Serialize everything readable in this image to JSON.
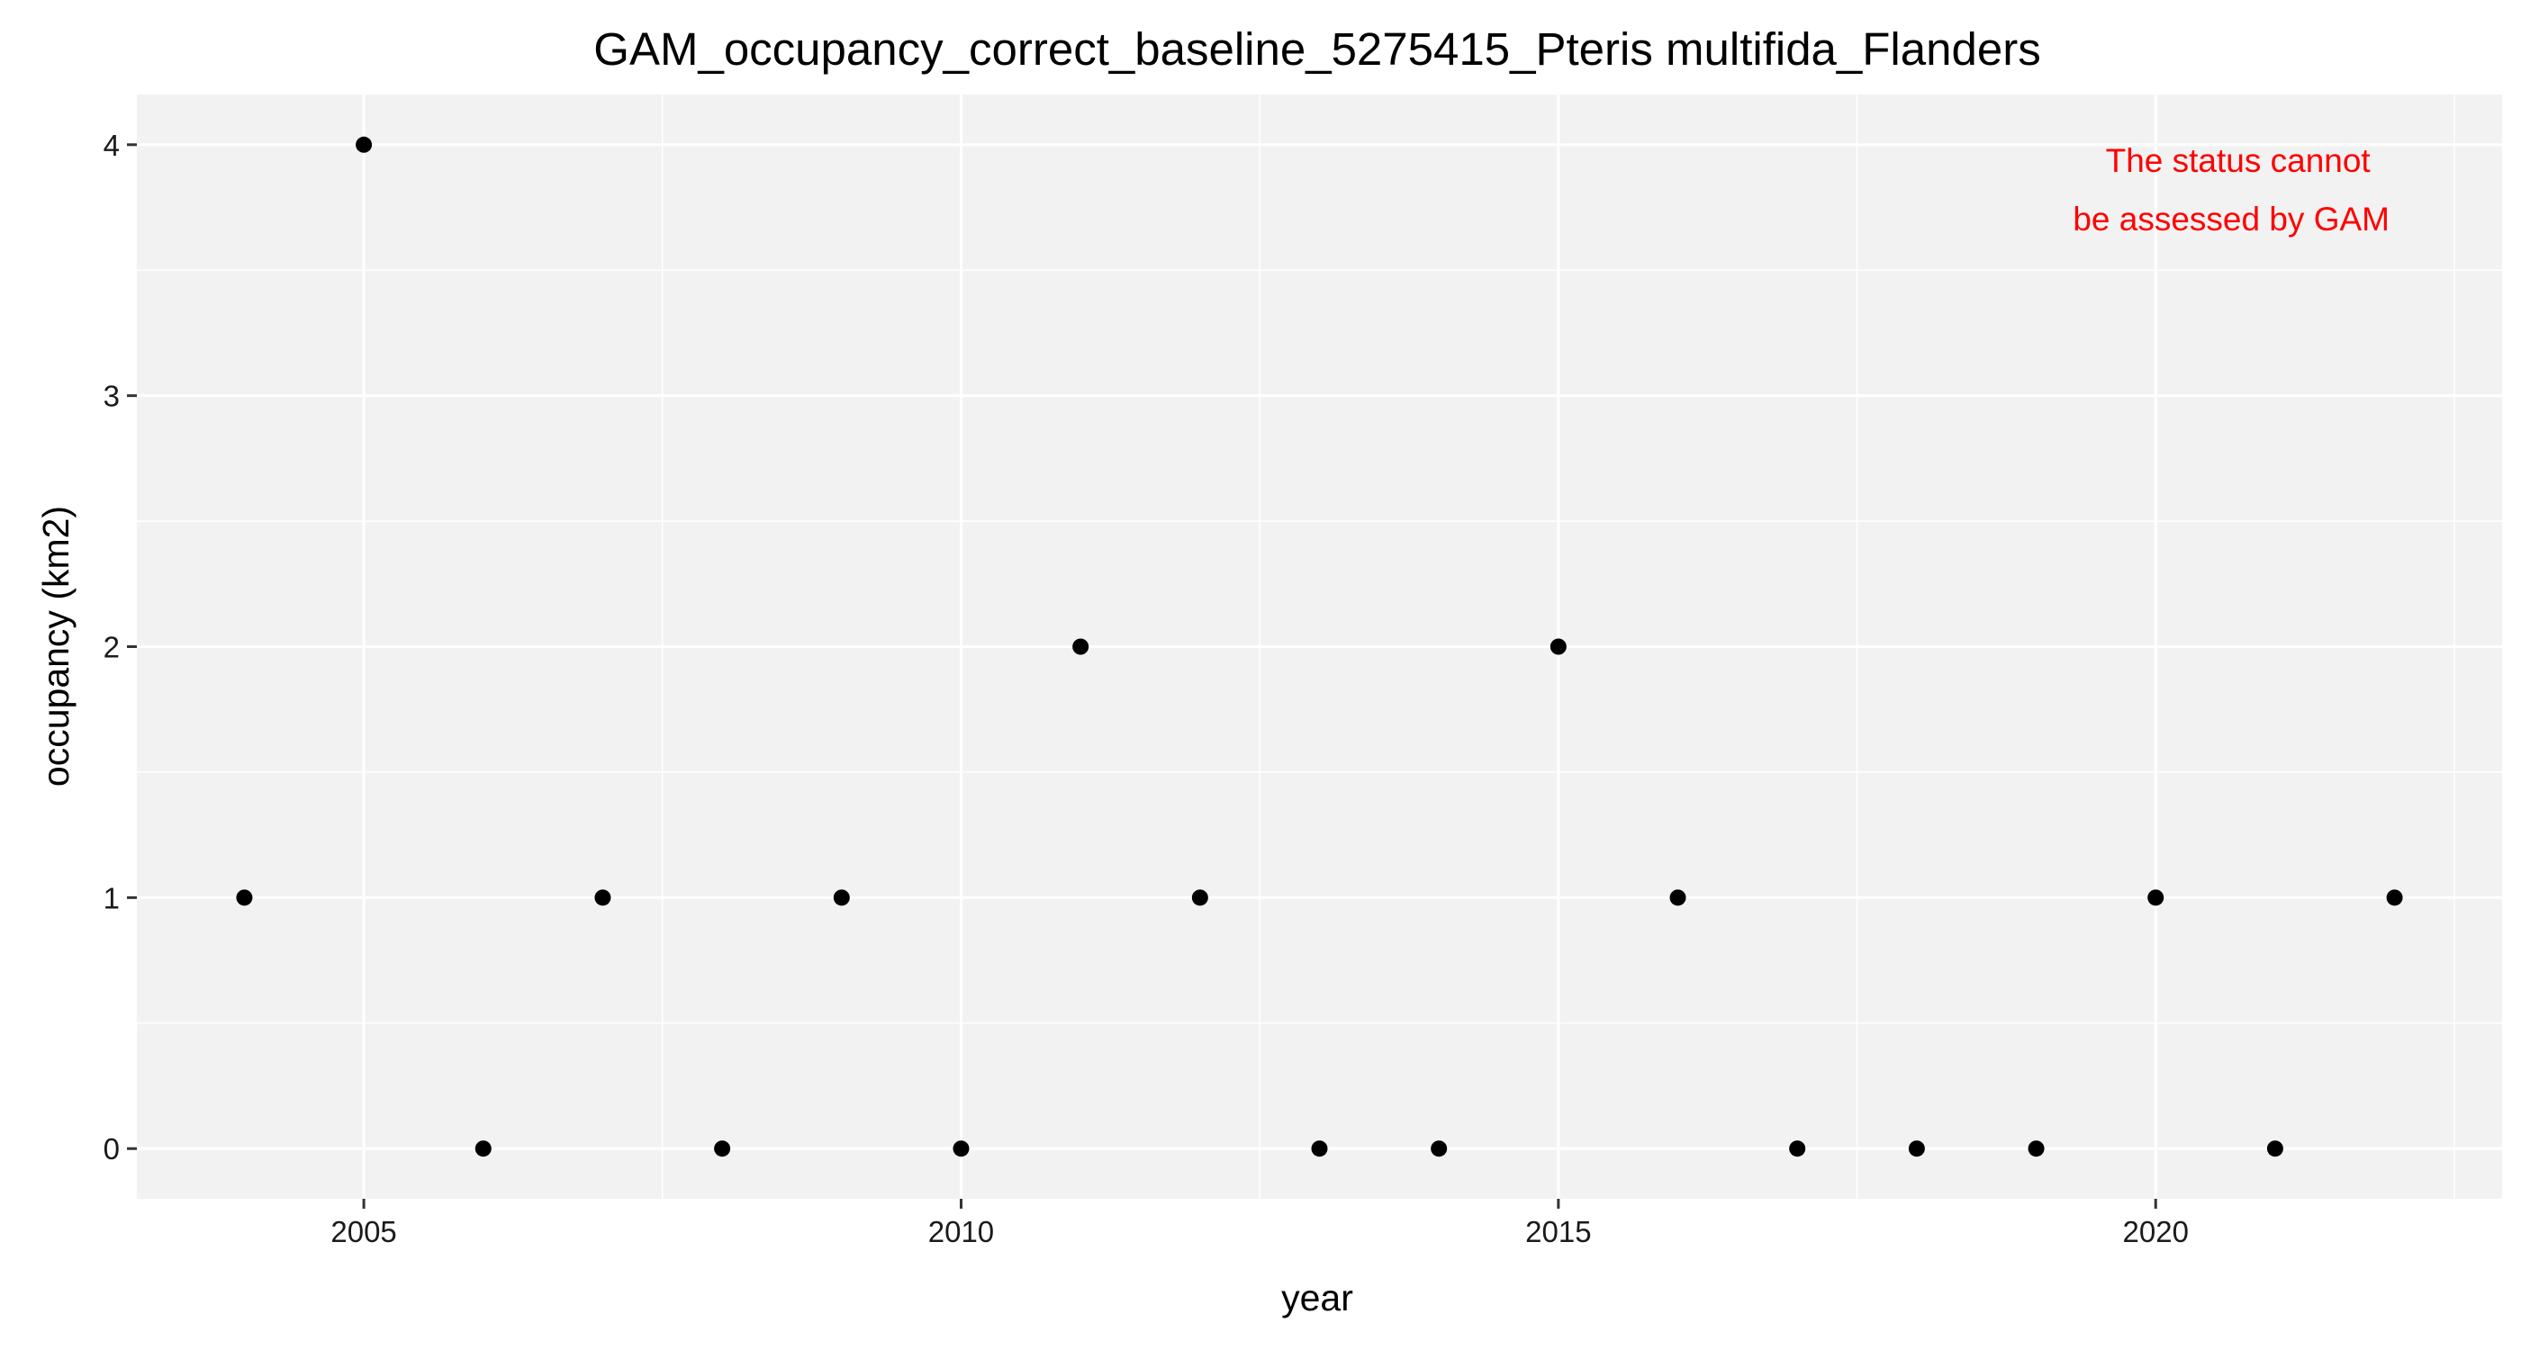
{
  "chart_data": {
    "type": "scatter",
    "title": "GAM_occupancy_correct_baseline_5275415_Pteris multifida_Flanders",
    "xlabel": "year",
    "ylabel": "occupancy (km2)",
    "xlim": [
      2003.1,
      2022.9
    ],
    "ylim": [
      -0.2,
      4.2
    ],
    "x_ticks": [
      2005,
      2010,
      2015,
      2020
    ],
    "y_ticks": [
      0,
      1,
      2,
      3,
      4
    ],
    "grid": true,
    "legend": "none",
    "series": [
      {
        "x": [
          2004,
          2005,
          2006,
          2007,
          2008,
          2009,
          2010,
          2011,
          2012,
          2013,
          2014,
          2015,
          2016,
          2017,
          2018,
          2019,
          2020,
          2021,
          2022
        ],
        "y": [
          1,
          4,
          0,
          1,
          0,
          1,
          0,
          2,
          1,
          0,
          0,
          2,
          1,
          0,
          0,
          0,
          1,
          0,
          1
        ]
      }
    ],
    "annotation": {
      "lines": [
        "The status cannot",
        "be assessed by GAM"
      ],
      "color": "#ff0000",
      "position": "top-right"
    },
    "colors": {
      "panel_background": "#f2f2f2",
      "grid": "#ffffff",
      "points": "#000000"
    }
  }
}
